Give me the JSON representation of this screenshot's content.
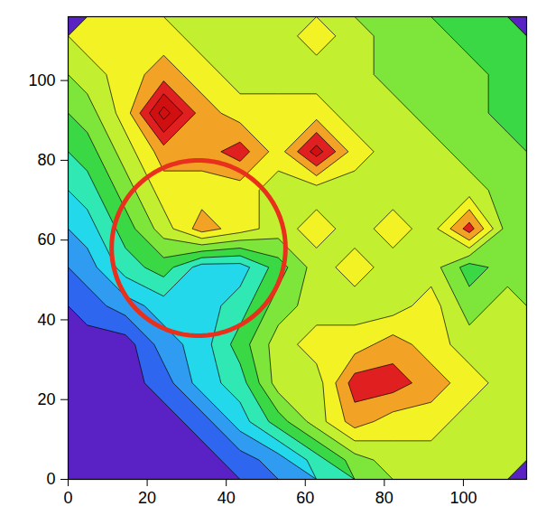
{
  "chart_data": {
    "type": "contour",
    "xlim": [
      0,
      116
    ],
    "ylim": [
      0,
      116
    ],
    "xticks": [
      0,
      20,
      40,
      60,
      80,
      100
    ],
    "yticks": [
      0,
      20,
      40,
      60,
      80,
      100
    ],
    "grid": false,
    "levels": [
      0.5,
      1.5,
      2.5,
      3.5,
      4.5,
      5.5,
      6.5,
      7.5,
      8.5,
      9.5,
      10.5,
      11.5
    ],
    "colors": [
      "#5a22c4",
      "#3434e6",
      "#2e66f0",
      "#2f9cf2",
      "#22d8ea",
      "#2fe8b4",
      "#3ad844",
      "#7ee63a",
      "#c2ef30",
      "#f2f224",
      "#f2a224",
      "#e02020",
      "#d01010"
    ],
    "cells": [
      [
        0,
        0,
        0,
        0,
        1,
        2,
        4,
        6,
        7,
        7,
        7,
        7
      ],
      [
        0,
        0,
        0,
        1,
        3,
        5,
        7,
        9,
        8,
        8,
        7,
        7
      ],
      [
        0,
        0,
        1,
        3,
        4,
        7,
        7,
        10,
        10,
        9,
        8,
        7
      ],
      [
        0,
        0,
        2,
        3,
        5,
        7,
        8,
        8,
        9,
        8,
        7,
        7
      ],
      [
        1,
        2,
        3,
        3,
        4,
        6,
        7,
        7,
        7,
        8,
        6,
        7
      ],
      [
        2,
        4,
        5,
        3,
        3,
        5,
        7,
        8,
        7,
        7,
        5,
        6
      ],
      [
        3,
        5,
        7,
        9,
        8,
        7,
        8,
        7,
        8,
        7,
        10,
        6
      ],
      [
        4,
        6,
        8,
        8,
        8,
        7,
        7,
        7,
        7,
        7,
        7,
        6
      ],
      [
        5,
        7,
        9,
        9,
        10,
        8,
        11,
        8,
        7,
        7,
        6,
        6
      ],
      [
        6,
        8,
        12,
        9,
        8,
        8,
        8,
        7,
        7,
        6,
        6,
        5
      ],
      [
        7,
        8,
        9,
        8,
        7,
        7,
        7,
        7,
        6,
        6,
        6,
        5
      ],
      [
        8,
        8,
        8,
        7,
        7,
        7,
        8,
        7,
        6,
        6,
        5,
        5
      ]
    ],
    "annotations": [
      {
        "shape": "circle",
        "x": 33,
        "y": 58,
        "r": 22,
        "color": "#e8301c"
      }
    ]
  }
}
